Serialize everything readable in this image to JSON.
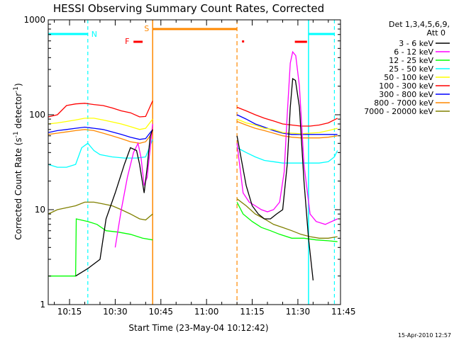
{
  "chart_data": {
    "type": "line",
    "title": "HESSI Observing Summary Count Rates, Corrected",
    "xlabel": "Start Time (23-May-04 10:12:42)",
    "ylabel": "Corrected Count Rate (s⁻¹ detector⁻¹)",
    "ylabel_main": "Corrected Count Rate (s",
    "ylabel_sup1": "-1",
    "ylabel_mid": " detector",
    "ylabel_sup2": "-1",
    "ylabel_end": ")",
    "x_axis": {
      "min_minutes": 8,
      "max_minutes": 104,
      "tick_minutes": [
        15,
        30,
        45,
        60,
        75,
        90,
        105
      ]
    },
    "xtick_labels": [
      "10:15",
      "10:30",
      "10:45",
      "11:00",
      "11:15",
      "11:30",
      "11:45"
    ],
    "y_axis": {
      "scale": "log",
      "min": 1,
      "max": 1000
    },
    "ytick_labels": [
      "1",
      "10",
      "100",
      "1000"
    ],
    "legend": {
      "placement": "right",
      "header_line1": "Det 1,3,4,5,6,9,",
      "header_line2": "Att 0"
    },
    "series": [
      {
        "name": "3 - 6 keV",
        "color": "#000000",
        "points": [
          [
            17,
            2
          ],
          [
            21,
            2.4
          ],
          [
            25,
            3
          ],
          [
            27,
            8
          ],
          [
            30,
            15
          ],
          [
            33,
            30
          ],
          [
            35,
            45
          ],
          [
            37,
            42
          ],
          [
            38,
            30
          ],
          [
            39.5,
            15
          ],
          [
            40.5,
            28
          ],
          [
            41.5,
            60
          ],
          [
            42.3,
            70
          ],
          [
            70,
            60
          ],
          [
            73,
            18
          ],
          [
            75,
            11
          ],
          [
            77,
            9
          ],
          [
            79,
            8
          ],
          [
            81,
            8
          ],
          [
            83,
            9
          ],
          [
            85,
            10
          ],
          [
            86.5,
            30
          ],
          [
            87.5,
            120
          ],
          [
            88.3,
            240
          ],
          [
            89.2,
            230
          ],
          [
            90.5,
            120
          ],
          [
            92,
            20
          ],
          [
            93.5,
            5
          ],
          [
            95,
            1.8
          ]
        ]
      },
      {
        "name": "6 - 12 keV",
        "color": "#ff00ff",
        "points": [
          [
            30,
            4
          ],
          [
            32,
            10
          ],
          [
            34,
            22
          ],
          [
            36,
            40
          ],
          [
            37.5,
            50
          ],
          [
            38.5,
            35
          ],
          [
            39.5,
            18
          ],
          [
            40.5,
            22
          ],
          [
            41.5,
            45
          ],
          [
            42.3,
            80
          ],
          [
            70,
            50
          ],
          [
            72,
            15
          ],
          [
            74,
            12
          ],
          [
            76,
            11
          ],
          [
            78,
            10
          ],
          [
            80,
            9.5
          ],
          [
            82,
            10
          ],
          [
            84,
            12
          ],
          [
            85.5,
            25
          ],
          [
            86.5,
            100
          ],
          [
            87.5,
            350
          ],
          [
            88.3,
            460
          ],
          [
            89.3,
            420
          ],
          [
            90.5,
            200
          ],
          [
            92,
            30
          ],
          [
            94,
            9
          ],
          [
            96,
            7.5
          ],
          [
            99,
            7
          ],
          [
            103,
            8
          ]
        ]
      },
      {
        "name": "12 - 25 keV",
        "color": "#00ff00",
        "points": [
          [
            8,
            2
          ],
          [
            17,
            2
          ],
          [
            17.2,
            8
          ],
          [
            21,
            7.5
          ],
          [
            24,
            7
          ],
          [
            27,
            6
          ],
          [
            31,
            5.8
          ],
          [
            35,
            5.5
          ],
          [
            39,
            5
          ],
          [
            42.3,
            4.8
          ],
          [
            70,
            12
          ],
          [
            72,
            9
          ],
          [
            75,
            7.5
          ],
          [
            78,
            6.5
          ],
          [
            81,
            6
          ],
          [
            84,
            5.5
          ],
          [
            88,
            5
          ],
          [
            92,
            5
          ],
          [
            96,
            4.8
          ],
          [
            100,
            4.7
          ],
          [
            103,
            4.6
          ]
        ]
      },
      {
        "name": "25 - 50 keV",
        "color": "#00ffff",
        "points": [
          [
            8,
            30
          ],
          [
            11,
            28
          ],
          [
            14,
            28
          ],
          [
            17,
            30
          ],
          [
            19,
            45
          ],
          [
            21,
            50
          ],
          [
            23,
            42
          ],
          [
            25,
            38
          ],
          [
            29,
            36
          ],
          [
            33,
            35
          ],
          [
            37,
            35
          ],
          [
            40,
            36
          ],
          [
            42.3,
            55
          ],
          [
            70,
            45
          ],
          [
            73,
            40
          ],
          [
            76,
            36
          ],
          [
            79,
            33
          ],
          [
            82,
            32
          ],
          [
            85,
            31
          ],
          [
            88,
            31
          ],
          [
            91,
            31
          ],
          [
            94,
            31
          ],
          [
            97,
            31
          ],
          [
            100,
            32
          ],
          [
            102,
            36
          ],
          [
            103,
            42
          ]
        ]
      },
      {
        "name": "50 - 100 keV",
        "color": "#ffff00",
        "points": [
          [
            8,
            80
          ],
          [
            11,
            82
          ],
          [
            14,
            85
          ],
          [
            17,
            88
          ],
          [
            20,
            92
          ],
          [
            23,
            92
          ],
          [
            26,
            88
          ],
          [
            29,
            84
          ],
          [
            32,
            80
          ],
          [
            35,
            75
          ],
          [
            38,
            70
          ],
          [
            40,
            72
          ],
          [
            42.3,
            90
          ],
          [
            70,
            90
          ],
          [
            73,
            82
          ],
          [
            76,
            78
          ],
          [
            79,
            72
          ],
          [
            82,
            70
          ],
          [
            85,
            65
          ],
          [
            88,
            64
          ],
          [
            91,
            63
          ],
          [
            94,
            64
          ],
          [
            97,
            65
          ],
          [
            100,
            68
          ],
          [
            103,
            72
          ]
        ]
      },
      {
        "name": "100 - 300 keV",
        "color": "#ff0000",
        "points": [
          [
            8,
            95
          ],
          [
            11,
            100
          ],
          [
            14,
            125
          ],
          [
            17,
            130
          ],
          [
            20,
            132
          ],
          [
            23,
            128
          ],
          [
            26,
            125
          ],
          [
            29,
            118
          ],
          [
            32,
            110
          ],
          [
            35,
            105
          ],
          [
            38,
            95
          ],
          [
            40,
            96
          ],
          [
            42.3,
            140
          ],
          [
            70,
            120
          ],
          [
            73,
            110
          ],
          [
            76,
            100
          ],
          [
            79,
            92
          ],
          [
            82,
            86
          ],
          [
            85,
            80
          ],
          [
            88,
            78
          ],
          [
            91,
            76
          ],
          [
            94,
            76
          ],
          [
            97,
            78
          ],
          [
            100,
            82
          ],
          [
            103,
            92
          ]
        ]
      },
      {
        "name": "300 - 800 keV",
        "color": "#0000ff",
        "points": [
          [
            8,
            65
          ],
          [
            11,
            68
          ],
          [
            14,
            70
          ],
          [
            17,
            72
          ],
          [
            20,
            74
          ],
          [
            23,
            72
          ],
          [
            26,
            70
          ],
          [
            29,
            66
          ],
          [
            32,
            62
          ],
          [
            35,
            58
          ],
          [
            38,
            55
          ],
          [
            40,
            56
          ],
          [
            42.3,
            70
          ],
          [
            70,
            100
          ],
          [
            73,
            90
          ],
          [
            76,
            80
          ],
          [
            79,
            74
          ],
          [
            82,
            68
          ],
          [
            85,
            64
          ],
          [
            88,
            62
          ],
          [
            91,
            62
          ],
          [
            94,
            62
          ],
          [
            97,
            62
          ],
          [
            100,
            62
          ],
          [
            103,
            62
          ]
        ]
      },
      {
        "name": "800 - 7000 keV",
        "color": "#ff8800",
        "points": [
          [
            8,
            62
          ],
          [
            11,
            64
          ],
          [
            14,
            66
          ],
          [
            17,
            68
          ],
          [
            20,
            70
          ],
          [
            23,
            68
          ],
          [
            26,
            64
          ],
          [
            29,
            60
          ],
          [
            32,
            56
          ],
          [
            35,
            52
          ],
          [
            38,
            50
          ],
          [
            40,
            52
          ],
          [
            42.3,
            65
          ],
          [
            70,
            85
          ],
          [
            73,
            78
          ],
          [
            76,
            72
          ],
          [
            79,
            68
          ],
          [
            82,
            64
          ],
          [
            85,
            60
          ],
          [
            88,
            58
          ],
          [
            91,
            57
          ],
          [
            94,
            57
          ],
          [
            97,
            57
          ],
          [
            100,
            58
          ],
          [
            103,
            60
          ]
        ]
      },
      {
        "name": "7000 - 20000 keV",
        "color": "#808000",
        "points": [
          [
            8,
            9
          ],
          [
            11,
            10
          ],
          [
            14,
            10.5
          ],
          [
            17,
            11
          ],
          [
            20,
            12
          ],
          [
            23,
            12
          ],
          [
            26,
            11.5
          ],
          [
            29,
            11
          ],
          [
            32,
            10
          ],
          [
            35,
            9
          ],
          [
            38,
            8
          ],
          [
            40,
            7.8
          ],
          [
            42.3,
            9
          ],
          [
            70,
            13
          ],
          [
            73,
            11
          ],
          [
            76,
            9
          ],
          [
            79,
            8
          ],
          [
            82,
            7
          ],
          [
            85,
            6.5
          ],
          [
            88,
            6
          ],
          [
            91,
            5.5
          ],
          [
            94,
            5.2
          ],
          [
            97,
            5
          ],
          [
            100,
            5
          ],
          [
            103,
            5.2
          ]
        ]
      }
    ],
    "annotations": {
      "night_label": "N",
      "saa_label": "S",
      "flare_label": "F",
      "cyan_bars": [
        [
          8,
          21
        ],
        [
          93.5,
          102
        ]
      ],
      "cyan_solid_lines": [
        93.5
      ],
      "cyan_dashed_lines": [
        21,
        102
      ],
      "orange_bar": [
        42.3,
        70
      ],
      "orange_solid_lines": [
        42.3
      ],
      "orange_dashed_lines": [
        70
      ],
      "red_bars": [
        [
          36,
          39
        ],
        [
          89,
          93
        ]
      ],
      "red_dots": [
        72
      ]
    }
  },
  "footer": {
    "date": "15-Apr-2010 12:57"
  }
}
